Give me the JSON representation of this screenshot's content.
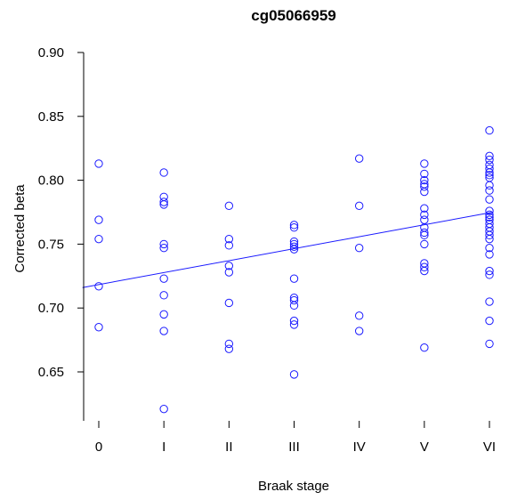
{
  "chart_data": {
    "type": "scatter",
    "title": "cg05066959",
    "xlabel": "Braak stage",
    "ylabel": "Corrected beta",
    "categories": [
      "0",
      "I",
      "II",
      "III",
      "IV",
      "V",
      "VI"
    ],
    "x_index_range": [
      -0.25,
      6.05
    ],
    "ylim": [
      0.61,
      0.9
    ],
    "yticks": [
      0.65,
      0.7,
      0.75,
      0.8,
      0.85,
      0.9
    ],
    "ytick_labels": [
      "0.65",
      "0.70",
      "0.75",
      "0.80",
      "0.85",
      "0.90"
    ],
    "grid": false,
    "legend": "none",
    "point_color": "#1a1aff",
    "line_color": "#1a1aff",
    "series": [
      {
        "points": [
          {
            "x": "0",
            "y": 0.813
          },
          {
            "x": "0",
            "y": 0.769
          },
          {
            "x": "0",
            "y": 0.754
          },
          {
            "x": "0",
            "y": 0.717
          },
          {
            "x": "0",
            "y": 0.685
          },
          {
            "x": "I",
            "y": 0.806
          },
          {
            "x": "I",
            "y": 0.787
          },
          {
            "x": "I",
            "y": 0.783
          },
          {
            "x": "I",
            "y": 0.781
          },
          {
            "x": "I",
            "y": 0.75
          },
          {
            "x": "I",
            "y": 0.747
          },
          {
            "x": "I",
            "y": 0.723
          },
          {
            "x": "I",
            "y": 0.71
          },
          {
            "x": "I",
            "y": 0.695
          },
          {
            "x": "I",
            "y": 0.682
          },
          {
            "x": "I",
            "y": 0.621
          },
          {
            "x": "II",
            "y": 0.78
          },
          {
            "x": "II",
            "y": 0.754
          },
          {
            "x": "II",
            "y": 0.749
          },
          {
            "x": "II",
            "y": 0.733
          },
          {
            "x": "II",
            "y": 0.728
          },
          {
            "x": "II",
            "y": 0.704
          },
          {
            "x": "II",
            "y": 0.672
          },
          {
            "x": "II",
            "y": 0.668
          },
          {
            "x": "III",
            "y": 0.765
          },
          {
            "x": "III",
            "y": 0.763
          },
          {
            "x": "III",
            "y": 0.752
          },
          {
            "x": "III",
            "y": 0.75
          },
          {
            "x": "III",
            "y": 0.748
          },
          {
            "x": "III",
            "y": 0.746
          },
          {
            "x": "III",
            "y": 0.723
          },
          {
            "x": "III",
            "y": 0.708
          },
          {
            "x": "III",
            "y": 0.706
          },
          {
            "x": "III",
            "y": 0.702
          },
          {
            "x": "III",
            "y": 0.69
          },
          {
            "x": "III",
            "y": 0.687
          },
          {
            "x": "III",
            "y": 0.648
          },
          {
            "x": "IV",
            "y": 0.817
          },
          {
            "x": "IV",
            "y": 0.78
          },
          {
            "x": "IV",
            "y": 0.747
          },
          {
            "x": "IV",
            "y": 0.694
          },
          {
            "x": "IV",
            "y": 0.682
          },
          {
            "x": "V",
            "y": 0.813
          },
          {
            "x": "V",
            "y": 0.805
          },
          {
            "x": "V",
            "y": 0.8
          },
          {
            "x": "V",
            "y": 0.797
          },
          {
            "x": "V",
            "y": 0.795
          },
          {
            "x": "V",
            "y": 0.791
          },
          {
            "x": "V",
            "y": 0.778
          },
          {
            "x": "V",
            "y": 0.773
          },
          {
            "x": "V",
            "y": 0.769
          },
          {
            "x": "V",
            "y": 0.763
          },
          {
            "x": "V",
            "y": 0.759
          },
          {
            "x": "V",
            "y": 0.757
          },
          {
            "x": "V",
            "y": 0.75
          },
          {
            "x": "V",
            "y": 0.735
          },
          {
            "x": "V",
            "y": 0.732
          },
          {
            "x": "V",
            "y": 0.729
          },
          {
            "x": "V",
            "y": 0.669
          },
          {
            "x": "VI",
            "y": 0.839
          },
          {
            "x": "VI",
            "y": 0.819
          },
          {
            "x": "VI",
            "y": 0.816
          },
          {
            "x": "VI",
            "y": 0.812
          },
          {
            "x": "VI",
            "y": 0.809
          },
          {
            "x": "VI",
            "y": 0.806
          },
          {
            "x": "VI",
            "y": 0.804
          },
          {
            "x": "VI",
            "y": 0.802
          },
          {
            "x": "VI",
            "y": 0.796
          },
          {
            "x": "VI",
            "y": 0.792
          },
          {
            "x": "VI",
            "y": 0.785
          },
          {
            "x": "VI",
            "y": 0.776
          },
          {
            "x": "VI",
            "y": 0.773
          },
          {
            "x": "VI",
            "y": 0.771
          },
          {
            "x": "VI",
            "y": 0.769
          },
          {
            "x": "VI",
            "y": 0.766
          },
          {
            "x": "VI",
            "y": 0.763
          },
          {
            "x": "VI",
            "y": 0.76
          },
          {
            "x": "VI",
            "y": 0.757
          },
          {
            "x": "VI",
            "y": 0.754
          },
          {
            "x": "VI",
            "y": 0.747
          },
          {
            "x": "VI",
            "y": 0.742
          },
          {
            "x": "VI",
            "y": 0.729
          },
          {
            "x": "VI",
            "y": 0.726
          },
          {
            "x": "VI",
            "y": 0.705
          },
          {
            "x": "VI",
            "y": 0.69
          },
          {
            "x": "VI",
            "y": 0.672
          }
        ]
      }
    ],
    "regression_line": {
      "from": {
        "x": -0.25,
        "y": 0.716
      },
      "to": {
        "x": 6.05,
        "y": 0.775
      }
    }
  }
}
